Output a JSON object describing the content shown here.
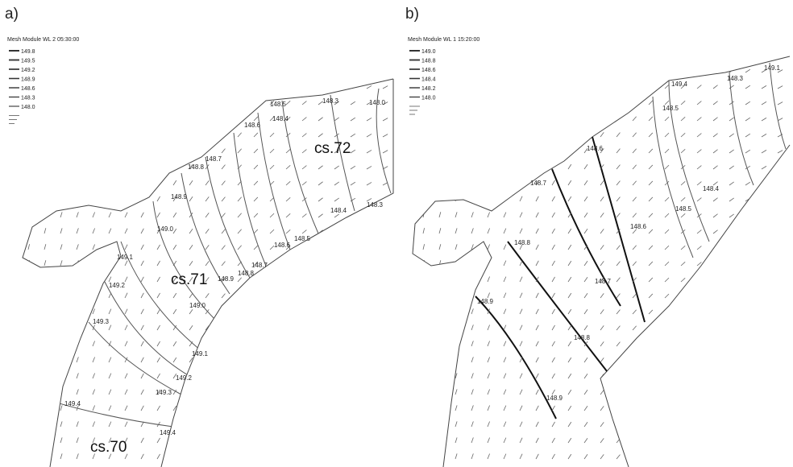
{
  "panels": [
    {
      "label": "a)",
      "title": "Mesh Module WL 2 05:30:00",
      "legend": [
        "149.8",
        "149.5",
        "149.2",
        "148.9",
        "148.6",
        "148.3",
        "148.0"
      ],
      "contour_labels": [
        "148.0",
        "148.3",
        "148.5",
        "148.4",
        "148.6",
        "148.7",
        "148.8",
        "148.9",
        "149.0",
        "149.1",
        "149.2",
        "149.3",
        "149.4",
        "148.4",
        "148.3",
        "148.5",
        "148.6",
        "148.7",
        "148.8",
        "148.9",
        "149.0",
        "149.1",
        "149.2",
        "149.3",
        "149.4"
      ],
      "sections": [
        "cs.72",
        "cs.71",
        "cs.70"
      ]
    },
    {
      "label": "b)",
      "title": "Mesh Module WL 1 15:20:00",
      "legend": [
        "149.0",
        "148.8",
        "148.6",
        "148.4",
        "148.2",
        "148.0"
      ],
      "contour_labels": [
        "149.1",
        "149.4",
        "148.3",
        "148.5",
        "148.6",
        "148.7",
        "148.8",
        "148.9",
        "148.6",
        "148.7",
        "148.8",
        "148.9",
        "148.4",
        "148.5"
      ],
      "sections": []
    }
  ]
}
